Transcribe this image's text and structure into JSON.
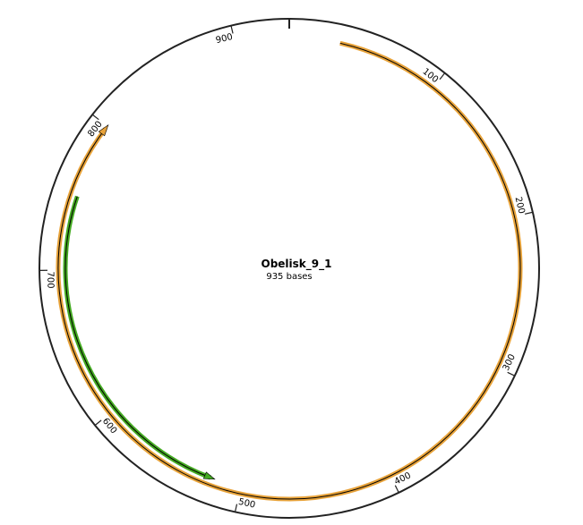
{
  "map": {
    "name": "Obelisk_9_1",
    "length_label": "935 bases",
    "total_bases": 935
  },
  "ticks": [
    {
      "position": 100,
      "label": "100"
    },
    {
      "position": 200,
      "label": "200"
    },
    {
      "position": 300,
      "label": "300"
    },
    {
      "position": 400,
      "label": "400"
    },
    {
      "position": 500,
      "label": "500"
    },
    {
      "position": 600,
      "label": "600"
    },
    {
      "position": 700,
      "label": "700"
    },
    {
      "position": 800,
      "label": "800"
    },
    {
      "position": 900,
      "label": "900"
    }
  ],
  "features": [
    {
      "id": "feature-orange",
      "start": 33,
      "end": 798,
      "strand": "forward",
      "color": "#e8a33a"
    },
    {
      "id": "feature-green",
      "start": 750,
      "end": 521,
      "strand": "reverse",
      "color": "#44aa22"
    }
  ],
  "colors": {
    "backbone": "#222222",
    "arrow_core": "#000000"
  }
}
